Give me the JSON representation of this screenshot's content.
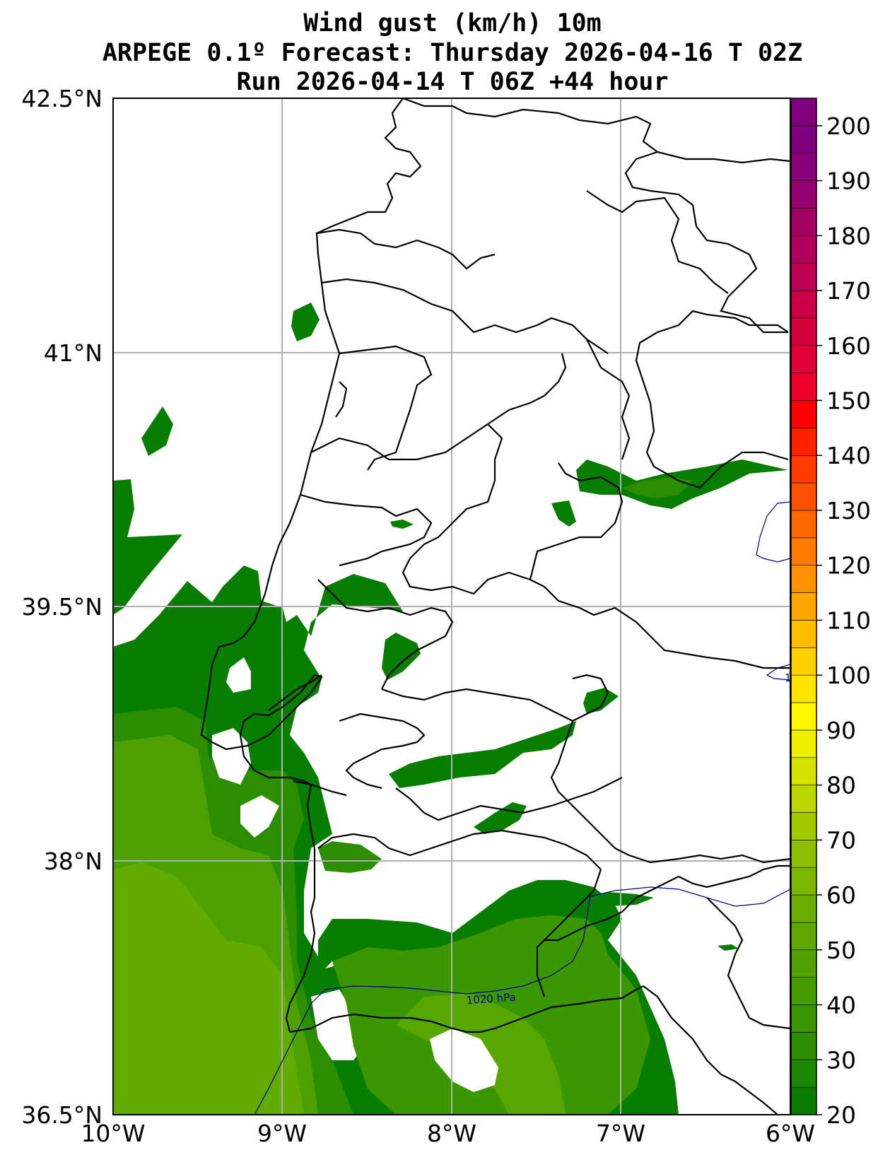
{
  "title": {
    "line1": "Wind gust (km/h) 10m",
    "line2": "ARPEGE 0.1º Forecast: Thursday 2026-04-16 T 02Z",
    "line3": "Run 2026-04-14 T 06Z +44 hour"
  },
  "axes": {
    "lon_ticks": [
      "10°W",
      "9°W",
      "8°W",
      "7°W",
      "6°W"
    ],
    "lat_ticks": [
      "42.5°N",
      "41°N",
      "39.5°N",
      "38°N",
      "36.5°N"
    ],
    "lon_range": [
      -10,
      -6
    ],
    "lat_range": [
      36.5,
      42.5
    ],
    "grid": true
  },
  "colorbar": {
    "labels": [
      "200",
      "190",
      "180",
      "170",
      "160",
      "150",
      "140",
      "130",
      "120",
      "110",
      "100",
      "90",
      "80",
      "70",
      "60",
      "50",
      "40",
      "30",
      "20"
    ],
    "min": 20,
    "max": 205,
    "step": 5,
    "colors": [
      "#0a7d00",
      "#1b8600",
      "#2c8e00",
      "#3a9600",
      "#479c00",
      "#53a200",
      "#5ea800",
      "#6aad00",
      "#7ab600",
      "#8cbf00",
      "#a3ca00",
      "#bcd600",
      "#d6e300",
      "#eef000",
      "#fff700",
      "#ffe400",
      "#ffd000",
      "#ffbc00",
      "#ffa700",
      "#ff9200",
      "#ff7c00",
      "#ff6600",
      "#ff5000",
      "#ff3a00",
      "#ff2000",
      "#ff0000",
      "#f0002a",
      "#e30034",
      "#d6003e",
      "#ca0046",
      "#bd0052",
      "#b0005c",
      "#a30066",
      "#960070",
      "#8a0078",
      "#7e007e",
      "#800080"
    ]
  },
  "isobar": {
    "label": "1020 hPa",
    "partial_label": "1",
    "color": "#00008b"
  },
  "wind_fill_colors": {
    "c20": "#087e00",
    "c25": "#138300",
    "c30": "#2a8e00",
    "c35": "#3b9700",
    "c40": "#4ca000",
    "c45": "#58a600",
    "c50": "#62ab00"
  }
}
